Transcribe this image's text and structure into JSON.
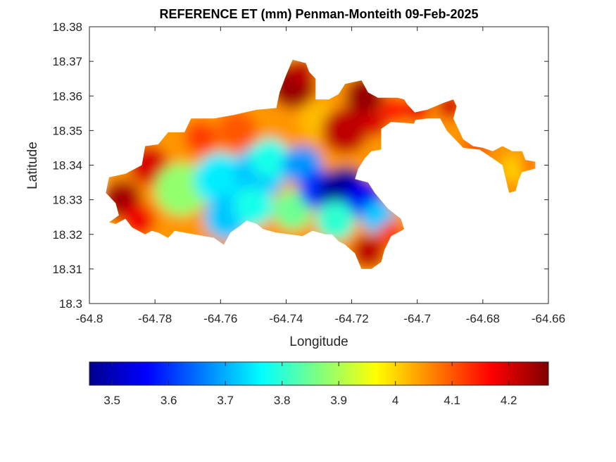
{
  "chart_data": {
    "type": "heatmap",
    "title": "REFERENCE ET (mm) Penman-Monteith 09-Feb-2025",
    "xlabel": "Longitude",
    "ylabel": "Latitude",
    "xlim": [
      -64.8,
      -64.66
    ],
    "ylim": [
      18.3,
      18.38
    ],
    "x_ticks": [
      -64.8,
      -64.78,
      -64.76,
      -64.74,
      -64.72,
      -64.7,
      -64.68,
      -64.66
    ],
    "x_tick_labels": [
      "-64.8",
      "-64.78",
      "-64.76",
      "-64.74",
      "-64.72",
      "-64.7",
      "-64.68",
      "-64.66"
    ],
    "y_ticks": [
      18.3,
      18.31,
      18.32,
      18.33,
      18.34,
      18.35,
      18.36,
      18.37,
      18.38
    ],
    "y_tick_labels": [
      "18.3",
      "18.31",
      "18.32",
      "18.33",
      "18.34",
      "18.35",
      "18.36",
      "18.37",
      "18.38"
    ],
    "grid": false,
    "colormap": "jet",
    "colorbar": {
      "placement": "bottom",
      "clim": [
        3.46,
        4.27
      ],
      "ticks": [
        3.5,
        3.6,
        3.7,
        3.8,
        3.9,
        4.0,
        4.1,
        4.2
      ],
      "tick_labels": [
        "3.5",
        "3.6",
        "3.7",
        "3.8",
        "3.9",
        "4",
        "4.1",
        "4.2"
      ]
    },
    "land_outline": [
      [
        -64.794,
        18.3365
      ],
      [
        -64.789,
        18.3375
      ],
      [
        -64.784,
        18.34
      ],
      [
        -64.783,
        18.3455
      ],
      [
        -64.779,
        18.346
      ],
      [
        -64.776,
        18.3495
      ],
      [
        -64.771,
        18.3495
      ],
      [
        -64.769,
        18.3535
      ],
      [
        -64.762,
        18.3535
      ],
      [
        -64.756,
        18.3545
      ],
      [
        -64.749,
        18.356
      ],
      [
        -64.743,
        18.3565
      ],
      [
        -64.742,
        18.361
      ],
      [
        -64.74,
        18.366
      ],
      [
        -64.738,
        18.3705
      ],
      [
        -64.734,
        18.3695
      ],
      [
        -64.733,
        18.367
      ],
      [
        -64.731,
        18.365
      ],
      [
        -64.731,
        18.359
      ],
      [
        -64.727,
        18.359
      ],
      [
        -64.724,
        18.3605
      ],
      [
        -64.722,
        18.3635
      ],
      [
        -64.717,
        18.3645
      ],
      [
        -64.715,
        18.361
      ],
      [
        -64.712,
        18.3595
      ],
      [
        -64.706,
        18.3595
      ],
      [
        -64.704,
        18.359
      ],
      [
        -64.703,
        18.3575
      ],
      [
        -64.7,
        18.3545
      ],
      [
        -64.701,
        18.352
      ],
      [
        -64.708,
        18.3525
      ],
      [
        -64.711,
        18.3505
      ],
      [
        -64.711,
        18.3445
      ],
      [
        -64.714,
        18.344
      ],
      [
        -64.716,
        18.342
      ],
      [
        -64.718,
        18.339
      ],
      [
        -64.719,
        18.336
      ],
      [
        -64.715,
        18.335
      ],
      [
        -64.713,
        18.332
      ],
      [
        -64.709,
        18.3275
      ],
      [
        -64.705,
        18.3245
      ],
      [
        -64.704,
        18.3215
      ],
      [
        -64.708,
        18.3195
      ],
      [
        -64.71,
        18.3155
      ],
      [
        -64.711,
        18.312
      ],
      [
        -64.714,
        18.31
      ],
      [
        -64.717,
        18.31
      ],
      [
        -64.719,
        18.3145
      ],
      [
        -64.722,
        18.317
      ],
      [
        -64.724,
        18.318
      ],
      [
        -64.726,
        18.32
      ],
      [
        -64.728,
        18.32
      ],
      [
        -64.732,
        18.321
      ],
      [
        -64.735,
        18.3195
      ],
      [
        -64.739,
        18.32
      ],
      [
        -64.743,
        18.3205
      ],
      [
        -64.747,
        18.3215
      ],
      [
        -64.749,
        18.323
      ],
      [
        -64.752,
        18.324
      ],
      [
        -64.754,
        18.3225
      ],
      [
        -64.757,
        18.3205
      ],
      [
        -64.759,
        18.317
      ],
      [
        -64.762,
        18.319
      ],
      [
        -64.765,
        18.3195
      ],
      [
        -64.768,
        18.32
      ],
      [
        -64.771,
        18.3205
      ],
      [
        -64.774,
        18.321
      ],
      [
        -64.776,
        18.319
      ],
      [
        -64.779,
        18.3205
      ],
      [
        -64.781,
        18.321
      ],
      [
        -64.783,
        18.32
      ],
      [
        -64.787,
        18.322
      ],
      [
        -64.789,
        18.3245
      ],
      [
        -64.792,
        18.323
      ],
      [
        -64.794,
        18.3235
      ],
      [
        -64.791,
        18.3255
      ],
      [
        -64.792,
        18.329
      ],
      [
        -64.795,
        18.332
      ]
    ],
    "east_peninsula": [
      [
        -64.702,
        18.355
      ],
      [
        -64.697,
        18.356
      ],
      [
        -64.692,
        18.358
      ],
      [
        -64.689,
        18.359
      ],
      [
        -64.688,
        18.357
      ],
      [
        -64.689,
        18.3535
      ],
      [
        -64.686,
        18.3475
      ],
      [
        -64.683,
        18.3455
      ],
      [
        -64.68,
        18.345
      ],
      [
        -64.677,
        18.344
      ],
      [
        -64.675,
        18.345
      ],
      [
        -64.674,
        18.3455
      ],
      [
        -64.671,
        18.344
      ],
      [
        -64.668,
        18.344
      ],
      [
        -64.667,
        18.3415
      ],
      [
        -64.664,
        18.341
      ],
      [
        -64.664,
        18.339
      ],
      [
        -64.668,
        18.338
      ],
      [
        -64.669,
        18.336
      ],
      [
        -64.67,
        18.3325
      ],
      [
        -64.672,
        18.332
      ],
      [
        -64.673,
        18.336
      ],
      [
        -64.674,
        18.34
      ],
      [
        -64.677,
        18.342
      ],
      [
        -64.681,
        18.3445
      ],
      [
        -64.686,
        18.345
      ],
      [
        -64.688,
        18.347
      ],
      [
        -64.691,
        18.35
      ],
      [
        -64.693,
        18.3535
      ],
      [
        -64.697,
        18.3535
      ],
      [
        -64.701,
        18.353
      ]
    ],
    "et_field": [
      {
        "lon": -64.79,
        "lat": 18.33,
        "value": 4.24,
        "r": 0.006
      },
      {
        "lon": -64.782,
        "lat": 18.34,
        "value": 4.2,
        "r": 0.006
      },
      {
        "lon": -64.785,
        "lat": 18.324,
        "value": 4.18,
        "r": 0.005
      },
      {
        "lon": -64.77,
        "lat": 18.344,
        "value": 4.05,
        "r": 0.006
      },
      {
        "lon": -64.766,
        "lat": 18.348,
        "value": 4.12,
        "r": 0.005
      },
      {
        "lon": -64.755,
        "lat": 18.35,
        "value": 4.1,
        "r": 0.006
      },
      {
        "lon": -64.738,
        "lat": 18.363,
        "value": 4.25,
        "r": 0.007
      },
      {
        "lon": -64.735,
        "lat": 18.367,
        "value": 4.22,
        "r": 0.004
      },
      {
        "lon": -64.73,
        "lat": 18.353,
        "value": 4.02,
        "r": 0.006
      },
      {
        "lon": -64.722,
        "lat": 18.35,
        "value": 4.22,
        "r": 0.007
      },
      {
        "lon": -64.716,
        "lat": 18.36,
        "value": 4.25,
        "r": 0.006
      },
      {
        "lon": -64.713,
        "lat": 18.352,
        "value": 4.2,
        "r": 0.004
      },
      {
        "lon": -64.707,
        "lat": 18.356,
        "value": 4.15,
        "r": 0.004
      },
      {
        "lon": -64.772,
        "lat": 18.333,
        "value": 3.88,
        "r": 0.008
      },
      {
        "lon": -64.76,
        "lat": 18.336,
        "value": 3.75,
        "r": 0.008
      },
      {
        "lon": -64.758,
        "lat": 18.325,
        "value": 3.72,
        "r": 0.007
      },
      {
        "lon": -64.748,
        "lat": 18.338,
        "value": 3.72,
        "r": 0.008
      },
      {
        "lon": -64.745,
        "lat": 18.342,
        "value": 3.78,
        "r": 0.006
      },
      {
        "lon": -64.75,
        "lat": 18.328,
        "value": 3.78,
        "r": 0.006
      },
      {
        "lon": -64.738,
        "lat": 18.327,
        "value": 3.85,
        "r": 0.006
      },
      {
        "lon": -64.735,
        "lat": 18.34,
        "value": 3.68,
        "r": 0.006
      },
      {
        "lon": -64.73,
        "lat": 18.333,
        "value": 3.6,
        "r": 0.006
      },
      {
        "lon": -64.722,
        "lat": 18.332,
        "value": 3.48,
        "r": 0.008
      },
      {
        "lon": -64.716,
        "lat": 18.33,
        "value": 3.55,
        "r": 0.006
      },
      {
        "lon": -64.712,
        "lat": 18.325,
        "value": 3.72,
        "r": 0.005
      },
      {
        "lon": -64.725,
        "lat": 18.324,
        "value": 3.8,
        "r": 0.006
      },
      {
        "lon": -64.715,
        "lat": 18.315,
        "value": 4.22,
        "r": 0.005
      },
      {
        "lon": -64.708,
        "lat": 18.32,
        "value": 4.12,
        "r": 0.004
      },
      {
        "lon": -64.7,
        "lat": 18.356,
        "value": 4.18,
        "r": 0.004
      },
      {
        "lon": -64.69,
        "lat": 18.357,
        "value": 4.2,
        "r": 0.004
      },
      {
        "lon": -64.682,
        "lat": 18.345,
        "value": 4.1,
        "r": 0.004
      },
      {
        "lon": -64.672,
        "lat": 18.344,
        "value": 4.05,
        "r": 0.004
      },
      {
        "lon": -64.67,
        "lat": 18.339,
        "value": 4.0,
        "r": 0.004
      },
      {
        "lon": -64.666,
        "lat": 18.34,
        "value": 4.08,
        "r": 0.003
      }
    ]
  }
}
